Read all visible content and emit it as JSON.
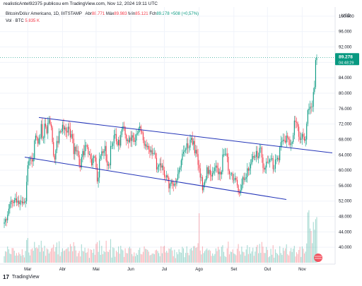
{
  "header": {
    "published": "realisticAntel92375 publicou em TradingView.com, Nov 12, 2024 19:11 UTC"
  },
  "legend": {
    "symbol": "Bitcoin/Dólar Americano, 1D, BITSTAMP",
    "o_label": "Abr",
    "o_value": "88.771",
    "h_label": "Máx",
    "h_value": "89.983",
    "l_label": "Mín",
    "l_value": "85.121",
    "c_label": "Fch",
    "c_value": "89.278",
    "change": "+508 (+0,57%)",
    "vol_label": "Vol · BTC",
    "vol_value": "5,835 K"
  },
  "price_tag": {
    "value": "89.278",
    "countdown": "04:48:29",
    "color": "#089981"
  },
  "footer": {
    "brand": "TradingView",
    "logo_glyph": "17"
  },
  "colors": {
    "up": "#089981",
    "down": "#f23645",
    "channel": "#2334b8"
  },
  "chart_data": {
    "type": "candlestick",
    "currency": "USD",
    "ylim": [
      36,
      102
    ],
    "yticks": [
      "100.000",
      "96.000",
      "92.000",
      "88.000",
      "84.000",
      "80.000",
      "76.000",
      "72.000",
      "68.000",
      "64.000",
      "60.000",
      "56.000",
      "52.000",
      "48.000",
      "44.000",
      "40.000"
    ],
    "ytick_values": [
      100,
      96,
      92,
      88,
      84,
      80,
      76,
      72,
      68,
      64,
      60,
      56,
      52,
      48,
      44,
      40
    ],
    "xticks": [
      "Mar",
      "Abr",
      "Mai",
      "Jun",
      "Jul",
      "Ago",
      "Set",
      "Out",
      "Nov"
    ],
    "xtick_index": [
      21,
      52,
      82,
      113,
      143,
      174,
      205,
      235,
      266
    ],
    "series_close": [
      46.5,
      47.3,
      47.0,
      48.5,
      50.0,
      51.2,
      52.1,
      51.8,
      51.5,
      52.3,
      52.7,
      51.6,
      52.1,
      51.2,
      51.9,
      52.0,
      51.4,
      51.8,
      51.6,
      52.0,
      57.0,
      61.3,
      62.5,
      63.1,
      62.9,
      62.3,
      63.1,
      67.7,
      69.0,
      68.4,
      66.9,
      68.2,
      68.5,
      72.0,
      68.3,
      68.4,
      72.1,
      71.3,
      69.6,
      72.3,
      73.1,
      71.9,
      71.1,
      67.3,
      63.8,
      62.8,
      65.2,
      67.6,
      67.1,
      70.1,
      69.9,
      70.1,
      71.8,
      70.6,
      71.1,
      70.2,
      69.8,
      71.3,
      70.7,
      68.5,
      69.4,
      68.2,
      64.2,
      66.1,
      64.9,
      65.1,
      63.9,
      61.3,
      60.7,
      63.4,
      65.0,
      63.9,
      66.5,
      66.5,
      66.0,
      64.2,
      64.2,
      62.9,
      61.3,
      63.2,
      63.6,
      63.3,
      60.7,
      57.1,
      58.1,
      63.0,
      63.8,
      64.9,
      64.5,
      65.0,
      66.3,
      62.5,
      61.2,
      61.5,
      61.3,
      66.3,
      66.3,
      67.0,
      69.1,
      69.4,
      67.5,
      66.5,
      67.9,
      66.4,
      69.2,
      70.6,
      71.4,
      71.2,
      69.2,
      67.6,
      67.9,
      67.3,
      68.5,
      67.6,
      69.1,
      68.5,
      67.4,
      67.7,
      69.5,
      69.6,
      70.9,
      71.4,
      70.1,
      69.8,
      67.8,
      66.4,
      66.7,
      66.0,
      66.3,
      65.4,
      64.7,
      65.2,
      64.2,
      64.4,
      64.5,
      63.2,
      60.2,
      60.9,
      61.3,
      61.8,
      60.7,
      61.2,
      60.0,
      58.3,
      58.2,
      58.7,
      58.0,
      55.3,
      56.5,
      57.1,
      56.5,
      56.0,
      56.5,
      56.4,
      57.6,
      59.0,
      60.1,
      60.7,
      62.6,
      64.3,
      64.8,
      65.2,
      65.4,
      67.0,
      65.8,
      65.9,
      67.9,
      68.4,
      66.7,
      67.6,
      64.4,
      65.3,
      64.2,
      61.4,
      60.5,
      58.1,
      58.2,
      54.8,
      56.2,
      57.1,
      57.8,
      60.8,
      59.1,
      60.1,
      58.8,
      58.4,
      59.3,
      59.8,
      60.7,
      61.2,
      60.6,
      59.0,
      59.6,
      58.9,
      59.6,
      64.1,
      64.1,
      64.2,
      64.3,
      63.5,
      59.9,
      59.0,
      59.1,
      59.2,
      57.5,
      57.5,
      58.0,
      57.5,
      56.1,
      54.3,
      54.0,
      54.9,
      56.2,
      58.2,
      57.5,
      57.8,
      58.2,
      60.5,
      59.9,
      60.5,
      61.6,
      62.9,
      63.7,
      63.3,
      63.5,
      65.0,
      63.2,
      63.6,
      65.8,
      65.9,
      63.3,
      60.6,
      60.2,
      60.7,
      62.2,
      62.1,
      62.1,
      62.8,
      62.9,
      63.1,
      60.3,
      60.4,
      62.8,
      62.9,
      63.2,
      62.6,
      66.0,
      67.3,
      67.6,
      67.9,
      67.7,
      67.2,
      69.0,
      68.3,
      68.0,
      66.6,
      66.9,
      67.3,
      69.1,
      72.9,
      72.5,
      72.4,
      71.3,
      68.7,
      67.9,
      68.2,
      69.4,
      68.7,
      67.7,
      68.0,
      72.1,
      75.6,
      75.9,
      76.5,
      76.4,
      76.5,
      80.3,
      81.6,
      88.6,
      89.3
    ],
    "channel_upper": {
      "from": [
        55,
        73.7
      ],
      "to": [
        470,
        64.5
      ]
    },
    "channel_lower": {
      "from": [
        35,
        63.4
      ],
      "to": [
        405,
        52.4
      ]
    }
  }
}
